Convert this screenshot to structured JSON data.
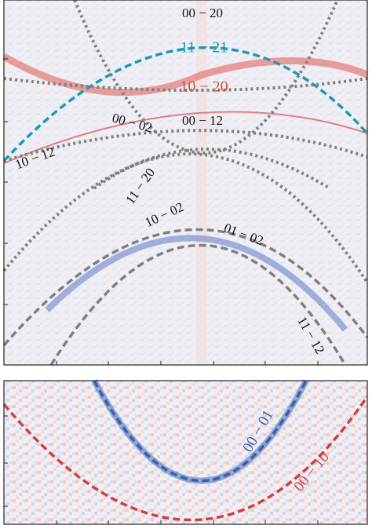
{
  "panels": [
    {
      "labels": [
        "00 − 20",
        "11 − 21",
        "10 − 20",
        "00 − 02",
        "00 − 12",
        "10 − 12",
        "11 − 20",
        "10 − 02",
        "01 − 02",
        "11 − 12"
      ]
    },
    {
      "labels": [
        "00 − 01",
        "00 − 10"
      ]
    }
  ]
}
